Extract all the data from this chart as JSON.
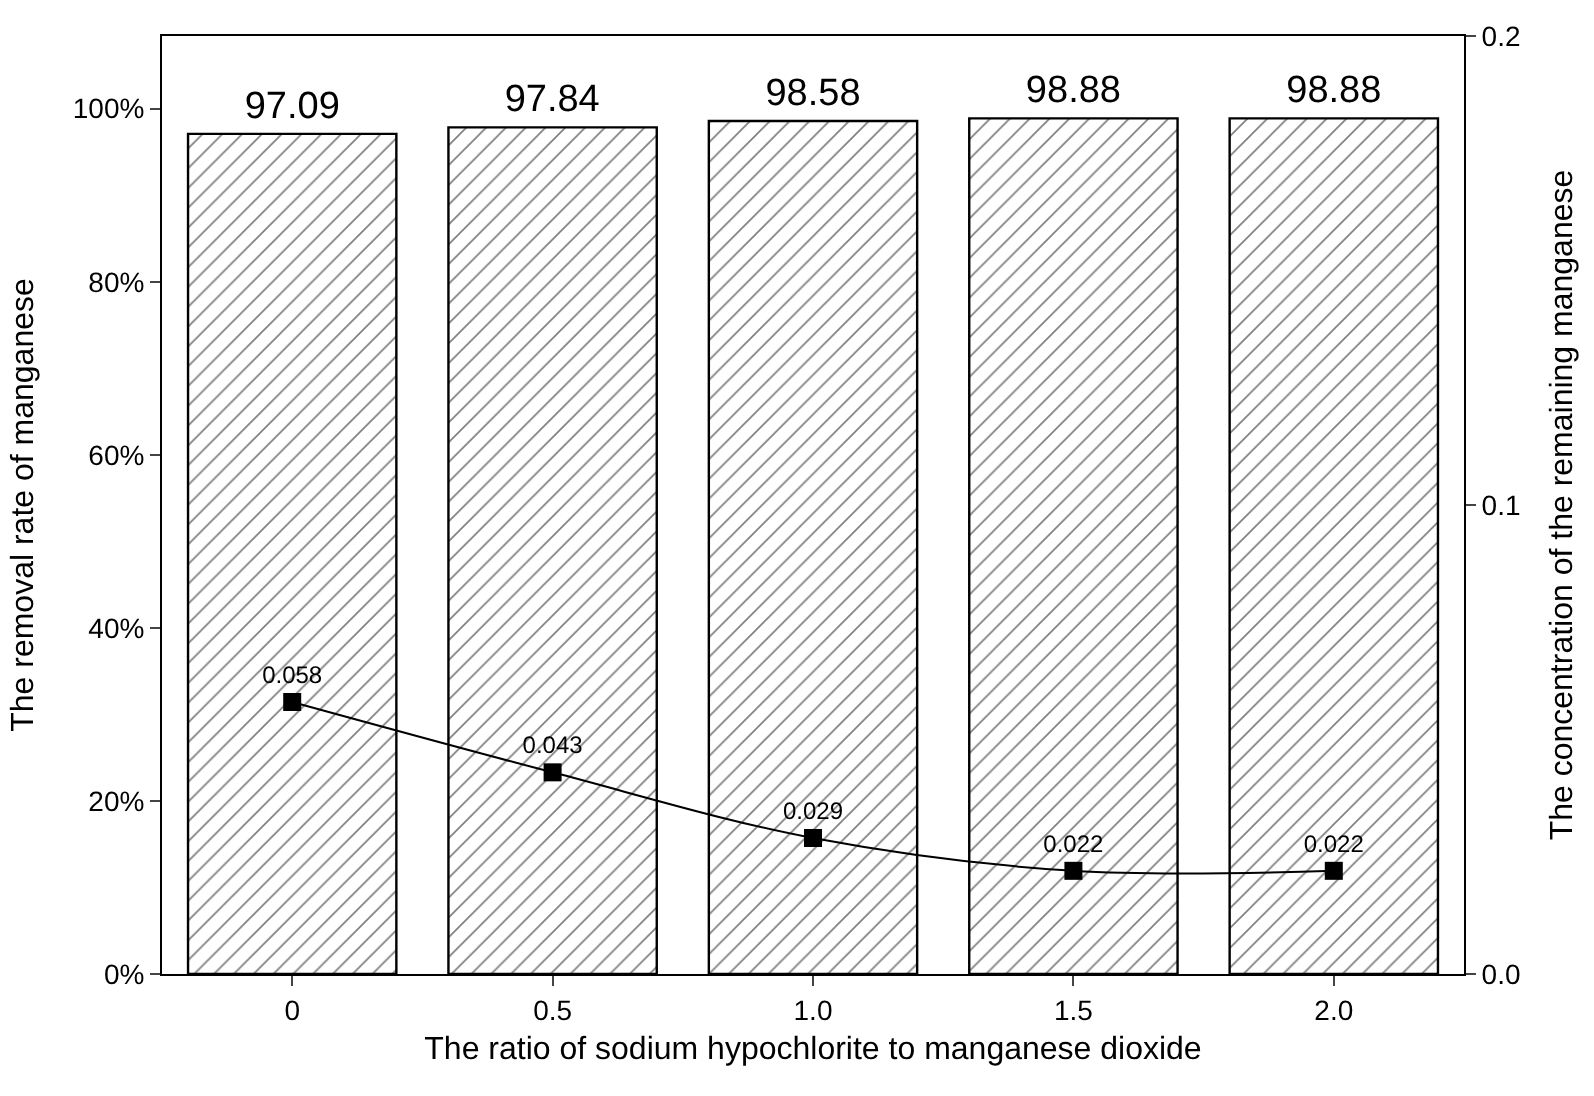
{
  "chart_data": {
    "type": "bar",
    "xlabel": "The ratio of sodium hypochlorite to manganese dioxide",
    "ylabel": "The removal rate of manganese",
    "y2label": "The concentration of the remaining manganese",
    "categories": [
      "0",
      "0.5",
      "1.0",
      "1.5",
      "2.0"
    ],
    "series": [
      {
        "color": "#000000",
        "values": [
          97.09,
          97.84,
          98.58,
          98.88,
          98.88
        ]
      },
      {
        "type": "line",
        "axis": "y2",
        "color": "#000000",
        "marker": "square",
        "values": [
          0.058,
          0.043,
          0.029,
          0.022,
          0.022
        ]
      }
    ],
    "ylim": [
      0,
      108.4
    ],
    "yticks": [
      {
        "value": 0,
        "label": "0%"
      },
      {
        "value": 20,
        "label": "20%"
      },
      {
        "value": 40,
        "label": "40%"
      },
      {
        "value": 60,
        "label": "60%"
      },
      {
        "value": 80,
        "label": "80%"
      },
      {
        "value": 100,
        "label": "100%"
      }
    ],
    "y2lim": [
      0,
      0.2
    ],
    "y2ticks": [
      {
        "value": 0,
        "label": "0.0"
      },
      0.1,
      0.2
    ],
    "data_labels": true
  }
}
